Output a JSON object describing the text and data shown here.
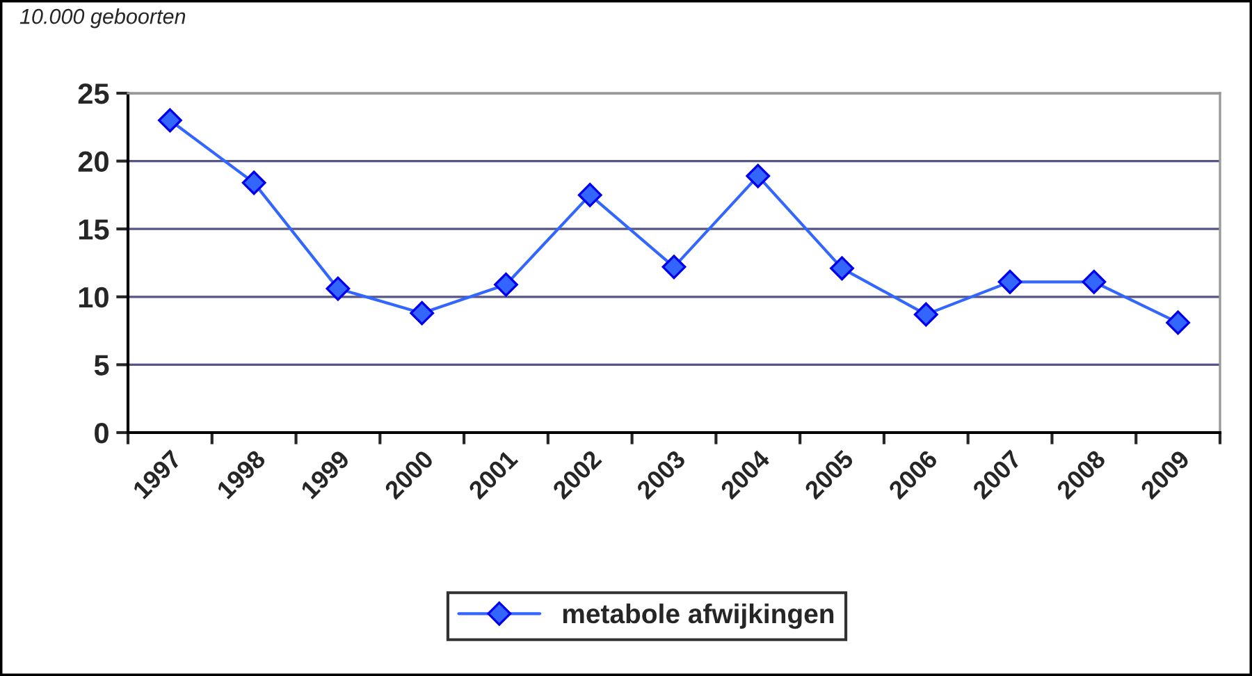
{
  "chart_data": {
    "type": "line",
    "title": "10.000 geboorten",
    "categories": [
      "1997",
      "1998",
      "1999",
      "2000",
      "2001",
      "2002",
      "2003",
      "2004",
      "2005",
      "2006",
      "2007",
      "2008",
      "2009"
    ],
    "series": [
      {
        "name": "metabole afwijkingen",
        "color": "#3366ff",
        "values": [
          23.0,
          18.4,
          10.6,
          8.8,
          10.9,
          17.5,
          12.2,
          18.9,
          12.1,
          8.7,
          11.1,
          11.1,
          8.1
        ]
      }
    ],
    "ylim": [
      0,
      25
    ],
    "yticks": [
      0,
      5,
      10,
      15,
      20,
      25
    ],
    "grid": "y",
    "legend": "bottom",
    "marker": "diamond",
    "line_style": "solid"
  }
}
